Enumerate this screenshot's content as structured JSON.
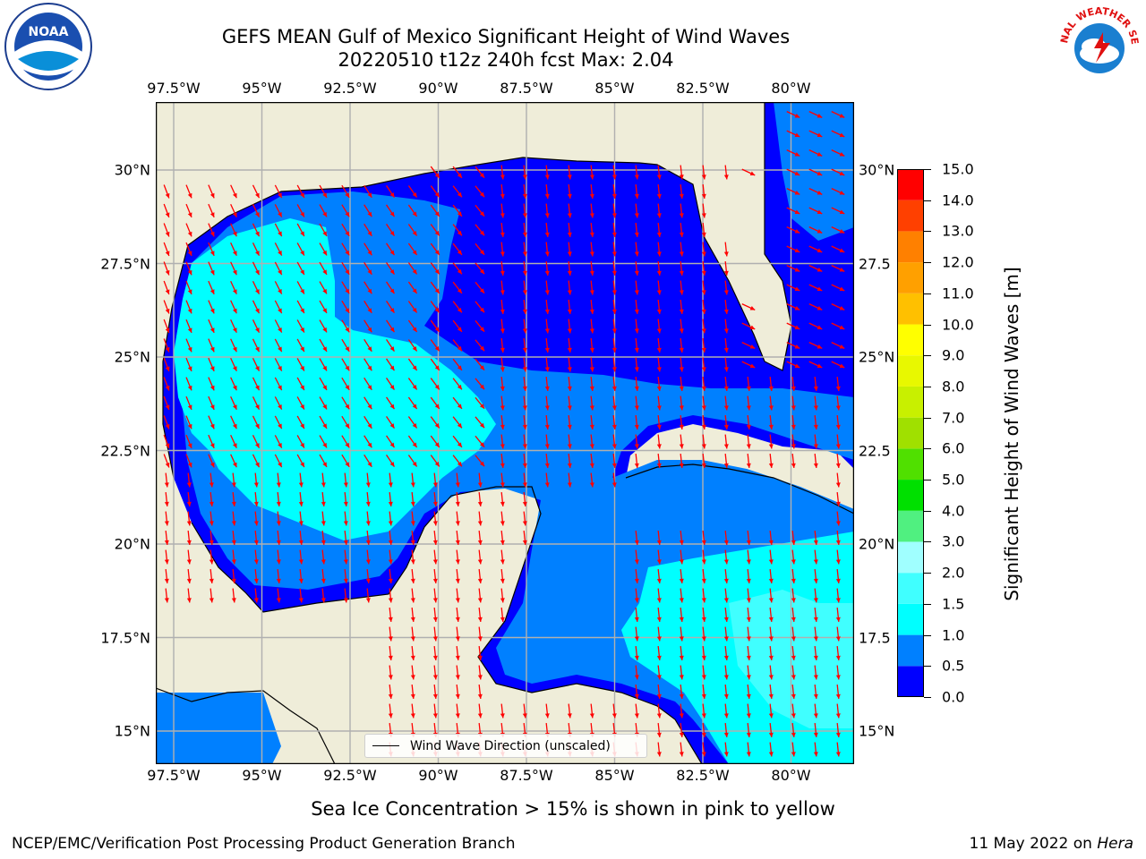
{
  "title_line1": "GEFS MEAN Gulf of Mexico Significant Height of Wind Waves",
  "title_line2": "20220510 t12z 240h fcst   Max: 2.04",
  "logos": {
    "left": {
      "icon": "noaa-logo",
      "text": "NOAA"
    },
    "right": {
      "icon": "national-weather-service-logo",
      "text": "NATIONAL WEATHER SERVICE"
    }
  },
  "lon_ticks": [
    "97.5°W",
    "95°W",
    "92.5°W",
    "90°W",
    "87.5°W",
    "85°W",
    "82.5°W",
    "80°W"
  ],
  "lat_ticks_left": [
    "30°N",
    "27.5°N",
    "25°N",
    "22.5°N",
    "20°N",
    "17.5°N",
    "15°N"
  ],
  "lat_ticks_right": [
    "30°N",
    "27.5",
    "25°N",
    "22.5",
    "20°N",
    "17.5",
    "15°N"
  ],
  "map_legend": "Wind Wave Direction (unscaled)",
  "colorbar": {
    "title": "Significant Height of Wind Waves [m]",
    "labels": [
      "15.0",
      "14.0",
      "13.0",
      "12.0",
      "11.0",
      "10.0",
      "9.0",
      "8.0",
      "7.0",
      "6.0",
      "5.0",
      "4.0",
      "3.0",
      "2.0",
      "1.5",
      "1.0",
      "0.5",
      "0.0"
    ],
    "bands": [
      {
        "from": 0.0,
        "to": 0.5,
        "color": "#0000ff"
      },
      {
        "from": 0.5,
        "to": 1.0,
        "color": "#0080ff"
      },
      {
        "from": 1.0,
        "to": 1.5,
        "color": "#00ffff"
      },
      {
        "from": 1.5,
        "to": 2.0,
        "color": "#40ffff"
      },
      {
        "from": 2.0,
        "to": 3.0,
        "color": "#a0ffff"
      },
      {
        "from": 3.0,
        "to": 4.0,
        "color": "#50f080"
      },
      {
        "from": 4.0,
        "to": 5.0,
        "color": "#00e000"
      },
      {
        "from": 5.0,
        "to": 6.0,
        "color": "#50e000"
      },
      {
        "from": 6.0,
        "to": 7.0,
        "color": "#a0e000"
      },
      {
        "from": 7.0,
        "to": 8.0,
        "color": "#c8f000"
      },
      {
        "from": 8.0,
        "to": 9.0,
        "color": "#e8f800"
      },
      {
        "from": 9.0,
        "to": 10.0,
        "color": "#ffff00"
      },
      {
        "from": 10.0,
        "to": 11.0,
        "color": "#ffc000"
      },
      {
        "from": 11.0,
        "to": 12.0,
        "color": "#ffa000"
      },
      {
        "from": 12.0,
        "to": 13.0,
        "color": "#ff8000"
      },
      {
        "from": 13.0,
        "to": 14.0,
        "color": "#ff4000"
      },
      {
        "from": 14.0,
        "to": 15.0,
        "color": "#ff0000"
      }
    ]
  },
  "colors": {
    "land": "#efedd9",
    "arrow": "#ff0000",
    "grid": "#b0b0b0"
  },
  "note": "Sea Ice Concentration > 15% is shown in pink to yellow",
  "footer_left": "NCEP/EMC/Verification Post Processing Product Generation Branch",
  "footer_right_prefix": "11 May 2022 on ",
  "footer_right_host": "Hera"
}
